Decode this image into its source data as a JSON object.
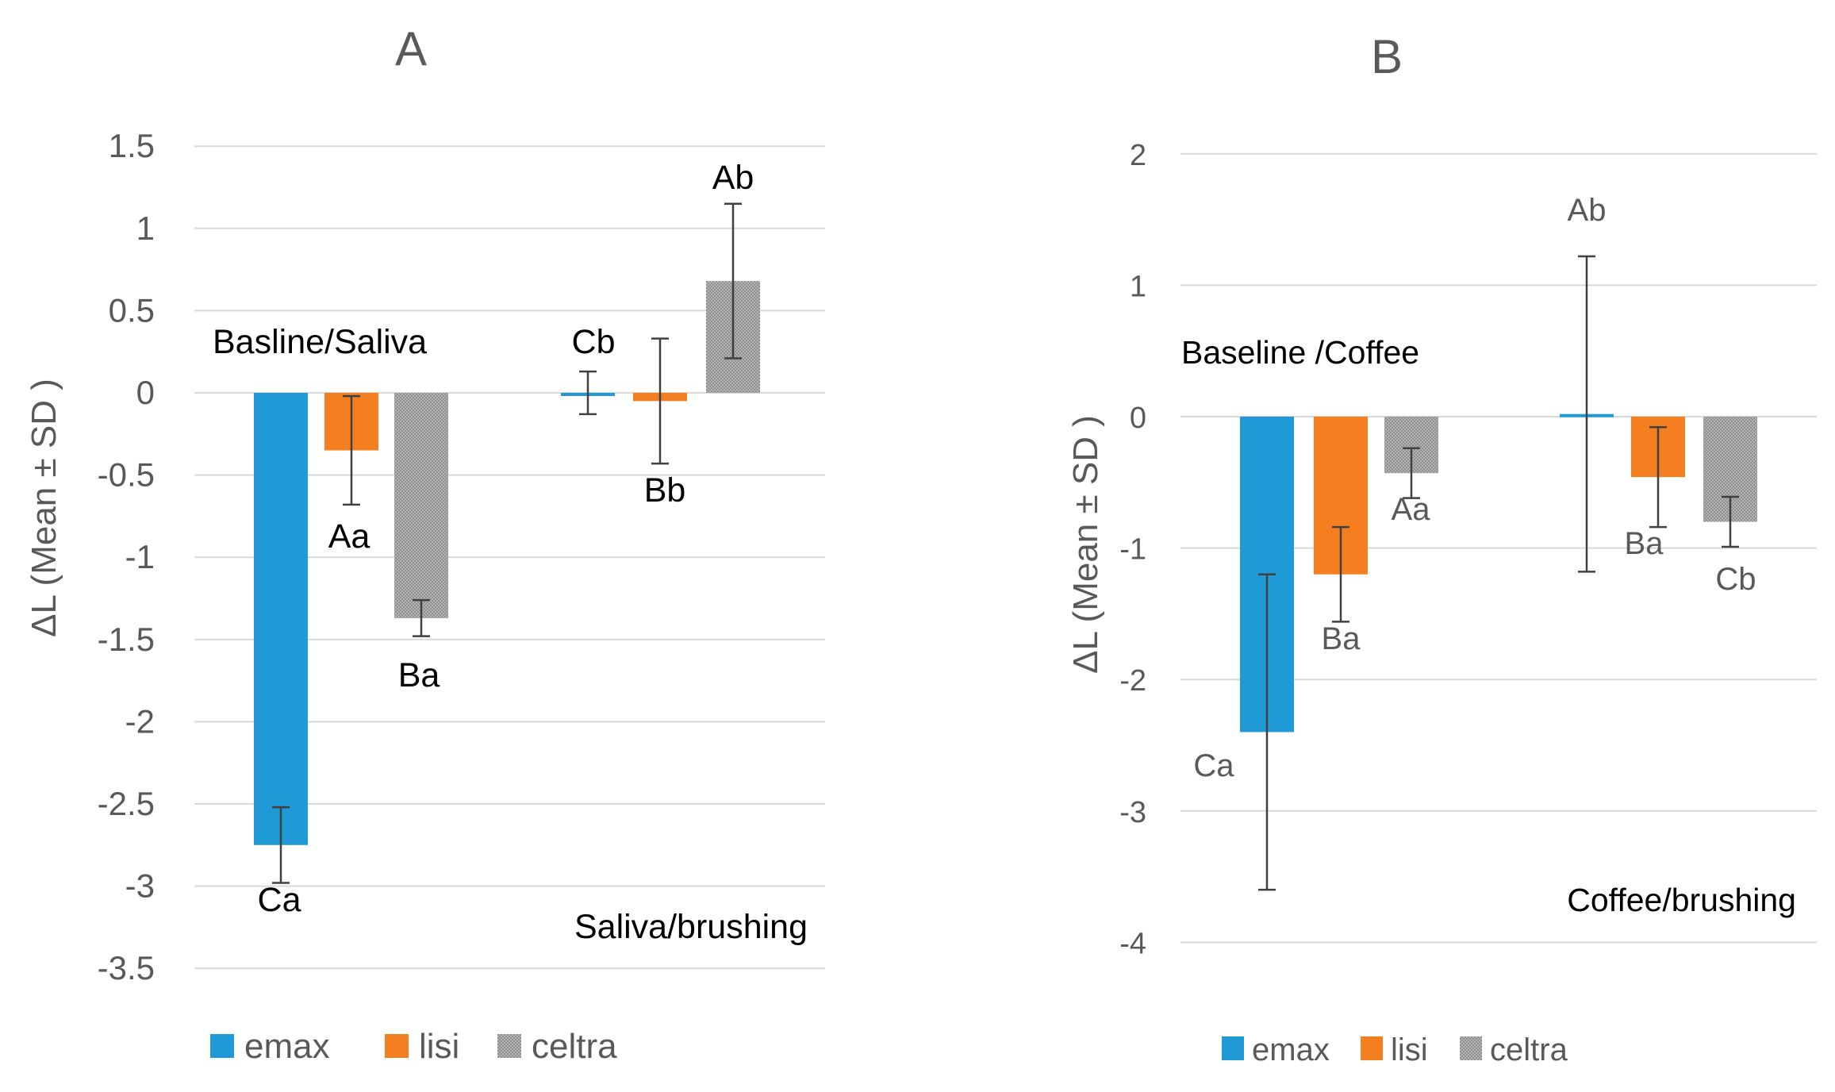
{
  "chart_data": [
    {
      "type": "bar",
      "title": "A",
      "ylabel": "ΔL (Mean ± SD )",
      "xlabel": "",
      "ylim": [
        -3.5,
        1.5
      ],
      "yticks": [
        1.5,
        1,
        0.5,
        0,
        -0.5,
        -1,
        -1.5,
        -2,
        -2.5,
        -3,
        -3.5
      ],
      "ytick_labels": [
        "1.5",
        "1",
        "0.5",
        "0",
        "-0.5",
        "-1",
        "-1.5",
        "-2",
        "-2.5",
        "-3",
        "-3.5"
      ],
      "grid": true,
      "legend_position": "bottom",
      "categories": [
        "Basline/Saliva",
        "Saliva/brushing"
      ],
      "series": [
        {
          "name": "emax",
          "color": "#1f9ad6",
          "values": [
            -2.75,
            0.0
          ],
          "errors": [
            0.23,
            0.13
          ],
          "letters": [
            "Ca",
            "Cb"
          ]
        },
        {
          "name": "lisi",
          "color": "#f47f20",
          "values": [
            -0.35,
            -0.05
          ],
          "errors": [
            0.33,
            0.38
          ],
          "letters": [
            "Aa",
            "Bb"
          ]
        },
        {
          "name": "celtra",
          "color": "#a5a5a5",
          "values": [
            -1.37,
            0.68
          ],
          "errors": [
            0.11,
            0.47
          ],
          "letters": [
            "Ba",
            "Ab"
          ]
        }
      ]
    },
    {
      "type": "bar",
      "title": "B",
      "ylabel": "ΔL (Mean ± SD )",
      "xlabel": "",
      "ylim": [
        -4,
        2
      ],
      "yticks": [
        2,
        1,
        0,
        -1,
        -2,
        -3,
        -4
      ],
      "ytick_labels": [
        "2",
        "1",
        "0",
        "-1",
        "-2",
        "-3",
        "-4"
      ],
      "grid": true,
      "legend_position": "bottom",
      "categories": [
        "Baseline /Coffee",
        "Coffee/brushing"
      ],
      "series": [
        {
          "name": "emax",
          "color": "#1f9ad6",
          "values": [
            -2.4,
            0.02
          ],
          "errors": [
            1.2,
            1.2
          ],
          "letters": [
            "Ca",
            "Ab"
          ]
        },
        {
          "name": "lisi",
          "color": "#f47f20",
          "values": [
            -1.2,
            -0.46
          ],
          "errors": [
            0.36,
            0.38
          ],
          "letters": [
            "Ba",
            "Ba"
          ]
        },
        {
          "name": "celtra",
          "color": "#a5a5a5",
          "values": [
            -0.43,
            -0.8
          ],
          "errors": [
            0.19,
            0.19
          ],
          "letters": [
            "Aa",
            "Cb"
          ]
        }
      ]
    }
  ]
}
